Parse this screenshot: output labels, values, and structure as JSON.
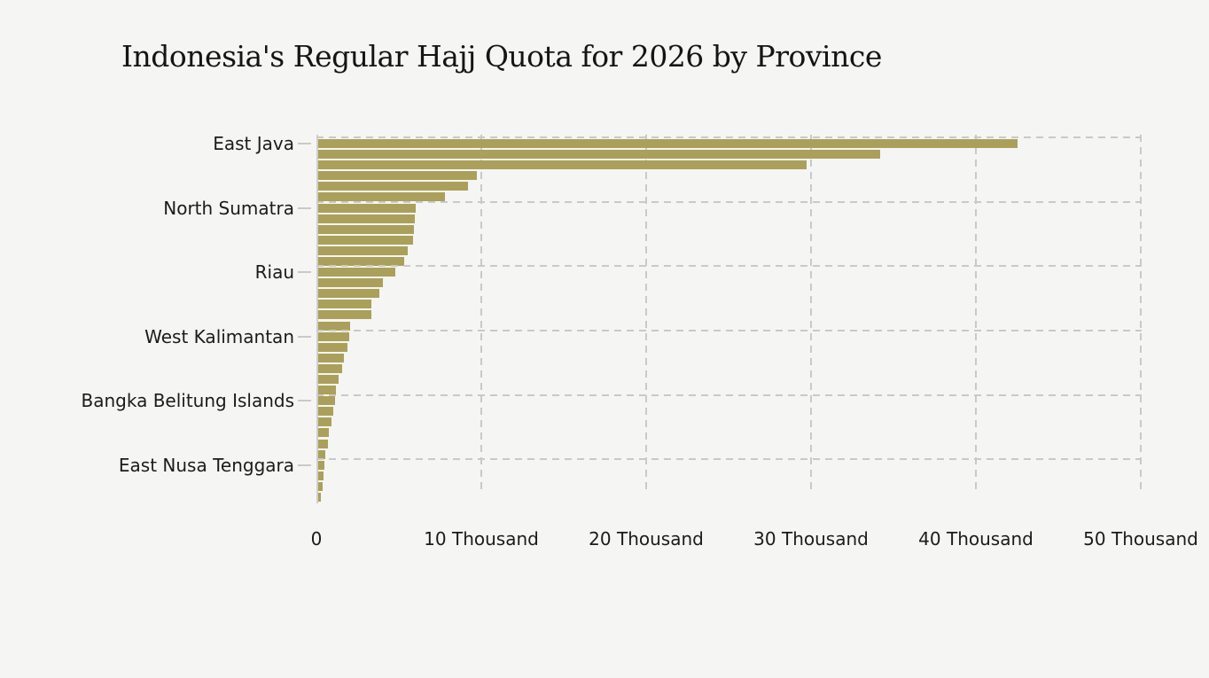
{
  "title": "Indonesia's Regular Hajj Quota for 2026 by Province",
  "chart_data": {
    "type": "bar",
    "orientation": "horizontal",
    "title": "Indonesia's Regular Hajj Quota for 2026 by Province",
    "xlabel": "",
    "ylabel": "",
    "xlim": [
      0,
      50000
    ],
    "grid": "dashed",
    "legend": "none",
    "num_bars": 34,
    "x_ticks": [
      {
        "value": 0,
        "label": "0"
      },
      {
        "value": 10000,
        "label": "10 Thousand"
      },
      {
        "value": 20000,
        "label": "20 Thousand"
      },
      {
        "value": 30000,
        "label": "30 Thousand"
      },
      {
        "value": 40000,
        "label": "40 Thousand"
      },
      {
        "value": 50000,
        "label": "50 Thousand"
      }
    ],
    "y_tick_labels": [
      {
        "bar_index": 0,
        "label": "East Java"
      },
      {
        "bar_index": 6,
        "label": "North Sumatra"
      },
      {
        "bar_index": 12,
        "label": "Riau"
      },
      {
        "bar_index": 18,
        "label": "West Kalimantan"
      },
      {
        "bar_index": 24,
        "label": "Bangka Belitung Islands"
      },
      {
        "bar_index": 30,
        "label": "East Nusa Tenggara"
      }
    ],
    "values": [
      42400,
      34100,
      29600,
      9600,
      9100,
      7700,
      5900,
      5850,
      5800,
      5750,
      5450,
      5200,
      4700,
      3900,
      3700,
      3250,
      3200,
      1950,
      1900,
      1750,
      1550,
      1450,
      1250,
      1050,
      1000,
      900,
      780,
      640,
      580,
      420,
      380,
      330,
      290,
      180
    ],
    "colors": {
      "bar": "#aba05b",
      "gridline": "#c9c9c9",
      "axis_line": "#cfcfcf",
      "tick_mark": "#c9c9c9",
      "title_text": "#151515",
      "label_text": "#1b1b1b",
      "background": "#f5f5f3"
    }
  }
}
